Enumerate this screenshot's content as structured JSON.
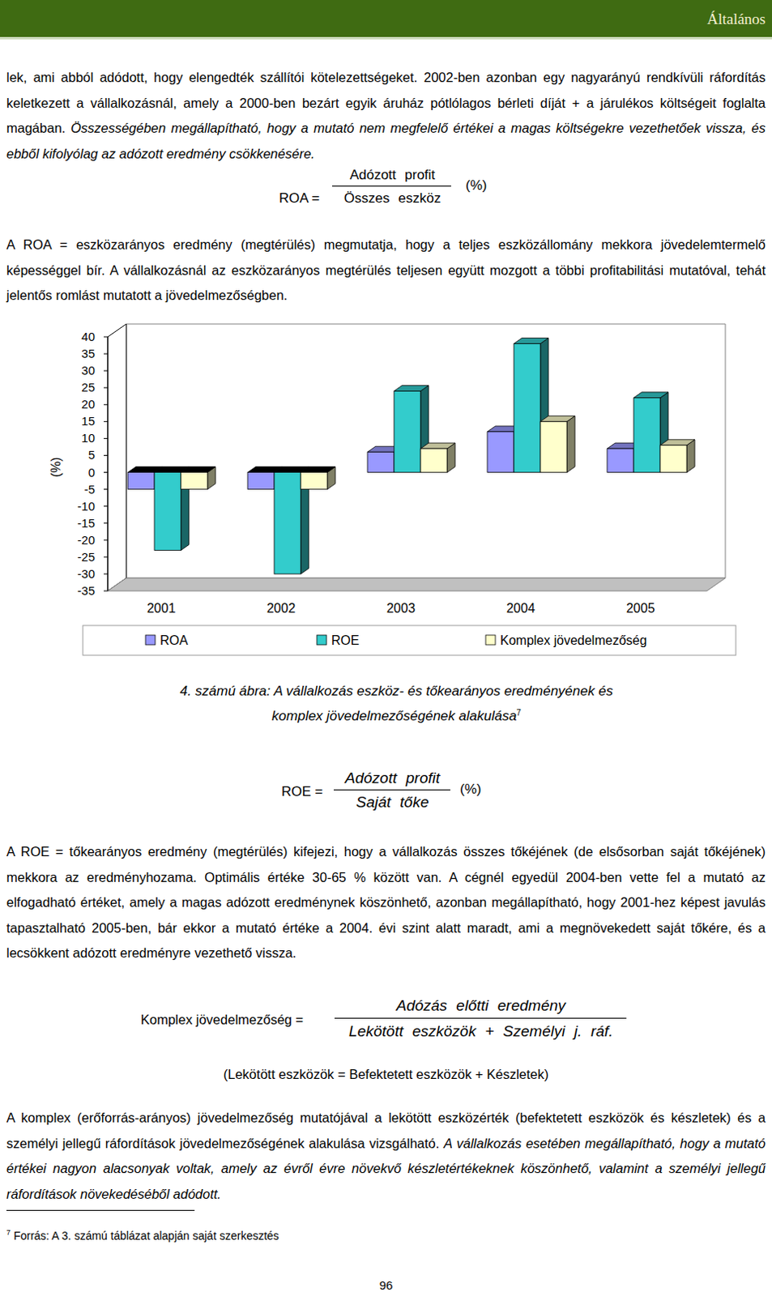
{
  "header": {
    "title": "Általános"
  },
  "paragraphs": [
    {
      "segments": [
        {
          "text": "lek, ami abból adódott, hogy elengedték szállítói kötelezettségeket. 2002-ben azonban egy nagyarányú rendkívüli ráfordítás keletkezett a vállalkozásnál, amely a 2000-ben bezárt egyik áruház pótlólagos bérleti díját + a járulékos költségeit foglalta magában. ",
          "italic": false
        },
        {
          "text": "Összességében megállapítható, hogy a mutató nem megfelelő értékei a magas költségekre vezethetőek vissza, és ebből kifolyólag az adózott eredmény csökkenésére.",
          "italic": true
        }
      ]
    },
    {
      "segments": [
        {
          "text": "A ROA = eszközarányos eredmény (megtérülés) megmutatja, hogy a teljes eszközállomány mekkora jövedelemtermelő képességgel bír. A vállalkozásnál az eszközarányos megtérülés teljesen együtt mozgott a többi profitabilitási mutatóval, tehát jelentős romlást mutatott a jövedelmezőségben.",
          "italic": false
        }
      ]
    },
    {
      "segments": [
        {
          "text": "A ROE = tőkearányos eredmény (megtérülés) kifejezi, hogy a vállalkozás összes tőkéjének (de elsősorban saját tőkéjének) mekkora az eredményhozama. Optimális értéke 30-65 % között van. A cégnél egyedül 2004-ben vette fel a mutató az elfogadható értéket, amely a magas adózott eredménynek köszönhető, azonban megállapítható, hogy 2001-hez képest javulás tapasztalható 2005-ben, bár ekkor a mutató értéke a 2004. évi szint alatt maradt, ami a megnövekedett saját tőkére, és a lecsökkent adózott eredményre vezethető vissza.",
          "italic": false
        }
      ]
    },
    {
      "segments": [
        {
          "text": "A komplex (erőforrás-arányos) jövedelmezőség mutatójával a lekötött eszközérték (befektetett eszközök és készletek) és a személyi jellegű ráfordítások jövedelmezőségének alakulása vizsgálható. ",
          "italic": false
        },
        {
          "text": "A vállalkozás esetében megállapítható, hogy a mutató értékei nagyon alacsonyak voltak, amely az évről évre növekvő készletértékeknek köszönhető, valamint a személyi jellegű ráfordítások növekedéséből adódott.",
          "italic": true
        }
      ]
    }
  ],
  "formulas": [
    {
      "lhs": "ROA =",
      "numerator": "Adózott profit",
      "denominator": "Összes eszköz",
      "unit": "(%)",
      "italic": false
    },
    {
      "lhs": "ROE =",
      "numerator": "Adózott profit",
      "denominator": "Saját tőke",
      "unit": "(%)",
      "italic": true
    },
    {
      "lhs": "Komplex jövedelmezőség =",
      "numerator": "Adózás előtti eredmény",
      "denominator": "Lekötött eszközök + Személyi j. ráf.",
      "italic": true
    }
  ],
  "formula_note": "(Lekötött eszközök = Befektetett eszközök + Készletek)",
  "chart_data": {
    "type": "bar",
    "y_label": "(%)",
    "categories": [
      "2001",
      "2002",
      "2003",
      "2004",
      "2005"
    ],
    "series": [
      {
        "name": "ROA",
        "color": "#9999ff",
        "values": [
          -5,
          -5,
          6,
          12,
          7
        ]
      },
      {
        "name": "ROE",
        "color": "#33cccc",
        "values": [
          -23,
          -30,
          24,
          38,
          22
        ]
      },
      {
        "name": "Komplex jövedelmezőség",
        "color": "#ffffcc",
        "values": [
          -5,
          -5,
          7,
          15,
          8
        ]
      }
    ],
    "ylim": [
      -35,
      40
    ],
    "yticks": [
      -35,
      -30,
      -25,
      -20,
      -15,
      -10,
      -5,
      0,
      5,
      10,
      15,
      20,
      25,
      30,
      35,
      40
    ],
    "grid": false,
    "legend": "bottom"
  },
  "caption": {
    "lines": [
      "4. számú ábra: A vállalkozás eszköz- és tőkearányos eredményének és",
      "komplex jövedelmezőségének alakulása"
    ],
    "footnote_ref": "7"
  },
  "footnote": {
    "marker": "7",
    "text": "Forrás: A 3. számú táblázat alapján saját szerkesztés"
  },
  "page_number": "96"
}
